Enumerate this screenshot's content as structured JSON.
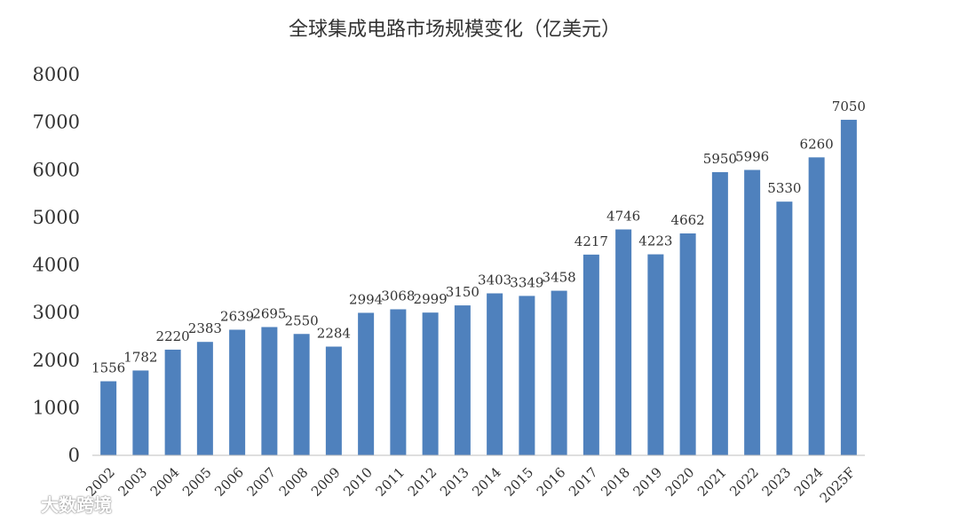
{
  "chart_data": {
    "type": "bar",
    "title": "全球集成电路市场规模变化（亿美元）",
    "categories": [
      "2002",
      "2003",
      "2004",
      "2005",
      "2006",
      "2007",
      "2008",
      "2009",
      "2010",
      "2011",
      "2012",
      "2013",
      "2014",
      "2015",
      "2016",
      "2017",
      "2018",
      "2019",
      "2020",
      "2021",
      "2022",
      "2023",
      "2024",
      "2025F"
    ],
    "values": [
      1556,
      1782,
      2220,
      2383,
      2639,
      2695,
      2550,
      2284,
      2994,
      3068,
      2999,
      3150,
      3403,
      3349,
      3458,
      4217,
      4746,
      4223,
      4662,
      5950,
      5996,
      5330,
      6260,
      7050
    ],
    "ylim": [
      0,
      8000
    ],
    "yticks": [
      0,
      1000,
      2000,
      3000,
      4000,
      5000,
      6000,
      7000,
      8000
    ],
    "grid": false,
    "legend": "none",
    "bar_color": "#4f81bd"
  },
  "watermark": {
    "text": "大数跨境"
  }
}
